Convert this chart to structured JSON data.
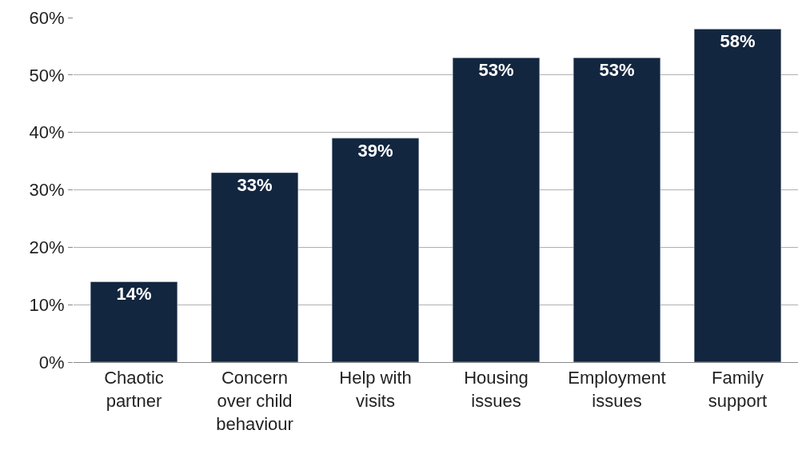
{
  "chart_data": {
    "type": "bar",
    "categories": [
      "Chaotic partner",
      "Concern over child behaviour",
      "Help with visits",
      "Housing issues",
      "Employment issues",
      "Family support"
    ],
    "values": [
      14,
      33,
      39,
      53,
      53,
      58
    ],
    "value_labels": [
      "14%",
      "33%",
      "39%",
      "53%",
      "53%",
      "58%"
    ],
    "color": "#13263f",
    "ylim": [
      0,
      60
    ],
    "yticks": [
      {
        "value": 0,
        "label": "0%"
      },
      {
        "value": 10,
        "label": "10%"
      },
      {
        "value": 20,
        "label": "20%"
      },
      {
        "value": 30,
        "label": "30%"
      },
      {
        "value": 40,
        "label": "40%"
      },
      {
        "value": 50,
        "label": "50%"
      },
      {
        "value": 60,
        "label": "60%"
      }
    ],
    "grid": "y"
  }
}
